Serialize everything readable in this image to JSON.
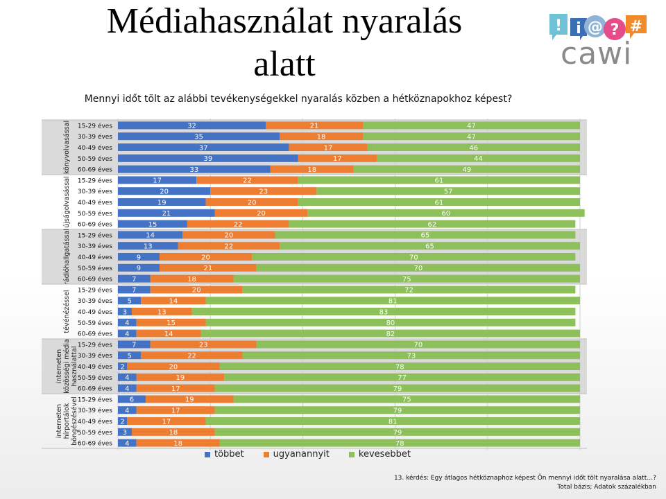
{
  "page": {
    "title": "Médiahasználat nyaralás alatt",
    "title_line1": "Médiahasználat nyaralás",
    "title_line2": "alatt",
    "subtitle": "Mennyi időt tölt az alábbi tevékenységekkel nyaralás közben a hétköznapokhoz képest?",
    "logo_text": "cawi",
    "logo_icon_glyphs": [
      "!",
      "i",
      "@",
      "?",
      "#"
    ],
    "footnote_line1": "13. kérdés: Egy átlagos hétköznaphoz képest Ön mennyi időt tölt nyaralása alatt…?",
    "footnote_line2": "Total bázis; Adatok százalékban"
  },
  "colors": {
    "tobbet": "#4472C4",
    "ugyanannyit": "#ED7D31",
    "kevesebbet": "#8DC05A",
    "group_shade": "#dadada"
  },
  "chart_data": {
    "type": "bar",
    "orientation": "horizontal",
    "stacked": true,
    "title": "Mennyi időt tölt az alábbi tevékenységekkel nyaralás közben a hétköznapokhoz képest?",
    "xlim": [
      0,
      100
    ],
    "grid": true,
    "legend_position": "bottom",
    "legend": [
      "többet",
      "ugyanannyit",
      "kevesebbet"
    ],
    "groups": [
      {
        "name": [
          "könyvolvasással"
        ],
        "shaded": true,
        "rows": [
          {
            "label": "15-29 éves",
            "values": [
              32,
              21,
              47
            ]
          },
          {
            "label": "30-39 éves",
            "values": [
              35,
              18,
              47
            ]
          },
          {
            "label": "40-49 éves",
            "values": [
              37,
              17,
              46
            ]
          },
          {
            "label": "50-59 éves",
            "values": [
              39,
              17,
              44
            ]
          },
          {
            "label": "60-69 éves",
            "values": [
              33,
              18,
              49
            ]
          }
        ]
      },
      {
        "name": [
          "újságolvasással"
        ],
        "shaded": false,
        "rows": [
          {
            "label": "15-29 éves",
            "values": [
              17,
              22,
              61
            ]
          },
          {
            "label": "30-39 éves",
            "values": [
              20,
              23,
              57
            ]
          },
          {
            "label": "40-49 éves",
            "values": [
              19,
              20,
              61
            ]
          },
          {
            "label": "50-59 éves",
            "values": [
              21,
              20,
              60
            ]
          },
          {
            "label": "60-69 éves",
            "values": [
              15,
              22,
              62
            ]
          }
        ]
      },
      {
        "name": [
          "rádióhallgatással"
        ],
        "shaded": true,
        "rows": [
          {
            "label": "15-29 éves",
            "values": [
              14,
              20,
              65
            ]
          },
          {
            "label": "30-39 éves",
            "values": [
              13,
              22,
              65
            ]
          },
          {
            "label": "40-49 éves",
            "values": [
              9,
              20,
              70
            ]
          },
          {
            "label": "50-59 éves",
            "values": [
              9,
              21,
              70
            ]
          },
          {
            "label": "60-69 éves",
            "values": [
              7,
              18,
              75
            ]
          }
        ]
      },
      {
        "name": [
          "tévénézéssel"
        ],
        "shaded": false,
        "rows": [
          {
            "label": "15-29 éves",
            "values": [
              7,
              20,
              72
            ]
          },
          {
            "label": "30-39 éves",
            "values": [
              5,
              14,
              81
            ]
          },
          {
            "label": "40-49 éves",
            "values": [
              3,
              13,
              83
            ]
          },
          {
            "label": "50-59 éves",
            "values": [
              4,
              15,
              80
            ]
          },
          {
            "label": "60-69 éves",
            "values": [
              4,
              14,
              82
            ]
          }
        ]
      },
      {
        "name": [
          "interneten",
          "közösségi média",
          "használattal"
        ],
        "shaded": true,
        "rows": [
          {
            "label": "15-29 éves",
            "values": [
              7,
              23,
              70
            ]
          },
          {
            "label": "30-39 éves",
            "values": [
              5,
              22,
              73
            ]
          },
          {
            "label": "40-49 éves",
            "values": [
              2,
              20,
              78
            ]
          },
          {
            "label": "50-59 éves",
            "values": [
              4,
              19,
              77
            ]
          },
          {
            "label": "60-69 éves",
            "values": [
              4,
              17,
              79
            ]
          }
        ]
      },
      {
        "name": [
          "interneten",
          "hírportálok",
          "böngészésével"
        ],
        "shaded": false,
        "rows": [
          {
            "label": "15-29 éves",
            "values": [
              6,
              19,
              75
            ]
          },
          {
            "label": "30-39 éves",
            "values": [
              4,
              17,
              79
            ]
          },
          {
            "label": "40-49 éves",
            "values": [
              2,
              17,
              81
            ]
          },
          {
            "label": "50-59 éves",
            "values": [
              3,
              18,
              79
            ]
          },
          {
            "label": "60-69 éves",
            "values": [
              4,
              18,
              78
            ]
          }
        ]
      }
    ]
  }
}
